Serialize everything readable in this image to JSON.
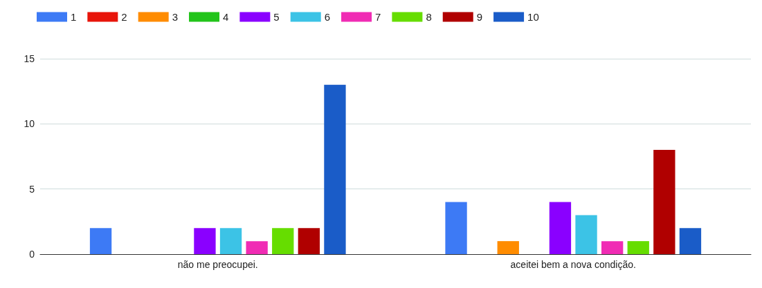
{
  "chart_data": {
    "type": "bar",
    "categories": [
      "não me preocupei.",
      "aceitei bem a nova condição."
    ],
    "series": [
      {
        "name": "1",
        "color": "#3d7af5",
        "values": [
          2,
          4
        ]
      },
      {
        "name": "2",
        "color": "#e8150a",
        "values": [
          0,
          0
        ]
      },
      {
        "name": "3",
        "color": "#ff8c00",
        "values": [
          0,
          1
        ]
      },
      {
        "name": "4",
        "color": "#22c41a",
        "values": [
          0,
          0
        ]
      },
      {
        "name": "5",
        "color": "#8a00ff",
        "values": [
          2,
          4
        ]
      },
      {
        "name": "6",
        "color": "#3cc3e6",
        "values": [
          2,
          3
        ]
      },
      {
        "name": "7",
        "color": "#f02cb4",
        "values": [
          1,
          1
        ]
      },
      {
        "name": "8",
        "color": "#66dd00",
        "values": [
          2,
          1
        ]
      },
      {
        "name": "9",
        "color": "#b00000",
        "values": [
          2,
          8
        ]
      },
      {
        "name": "10",
        "color": "#1a5cc8",
        "values": [
          13,
          2
        ]
      }
    ],
    "ylim": [
      0,
      15
    ],
    "yticks": [
      0,
      5,
      10,
      15
    ],
    "grid": "y",
    "legend": "top left"
  }
}
